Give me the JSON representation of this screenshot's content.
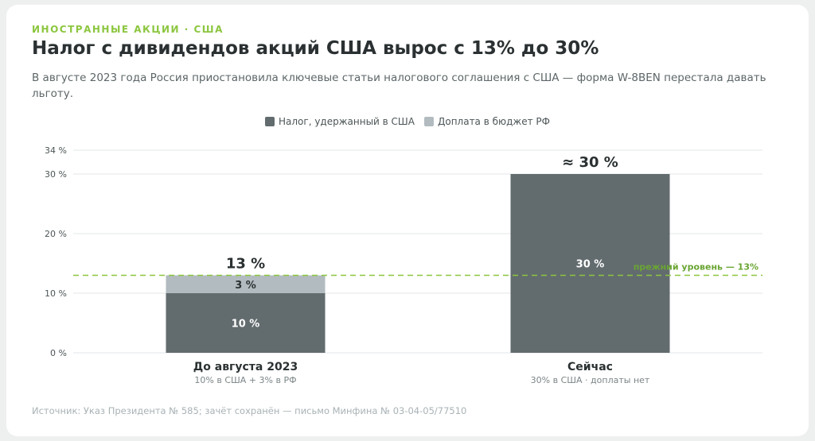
{
  "kicker": "ИНОСТРАННЫЕ АКЦИИ · США",
  "title": "Налог с дивидендов акций США вырос с 13% до 30%",
  "subtitle": "В августе 2023 года Россия приостановила ключевые статьи налогового соглашения с США — форма W-8BEN перестала давать льготу.",
  "source": "Источник: Указ Президента № 585; зачёт сохранён — письмо Минфина № 03-04-05/77510",
  "colors": {
    "us_tax": "#626b6e",
    "rf_extra": "#b2bbbf",
    "reference": "#8cc63f",
    "grid": "#e3e6e7"
  },
  "chart_data": {
    "type": "bar",
    "stacked": true,
    "categories": [
      "До августа 2023",
      "Сейчас"
    ],
    "category_notes": [
      "10% в США + 3% в РФ",
      "30% в США · доплаты нет"
    ],
    "series": [
      {
        "name": "Налог, удержанный в США",
        "values": [
          10,
          30
        ],
        "labels": [
          "10 %",
          "30 %"
        ]
      },
      {
        "name": "Доплата в бюджет РФ",
        "values": [
          3,
          0
        ],
        "labels": [
          "3 %",
          ""
        ]
      }
    ],
    "totals": [
      "13 %",
      "≈ 30 %"
    ],
    "ylim": [
      0,
      34
    ],
    "yticks": [
      0,
      10,
      20,
      30,
      34
    ],
    "ytick_labels": [
      "0 %",
      "10 %",
      "20 %",
      "30 %",
      "34 %"
    ],
    "reference_line": {
      "value": 13,
      "label": "прежний уровень — 13%"
    },
    "legend_position": "top-center",
    "grid": true
  }
}
